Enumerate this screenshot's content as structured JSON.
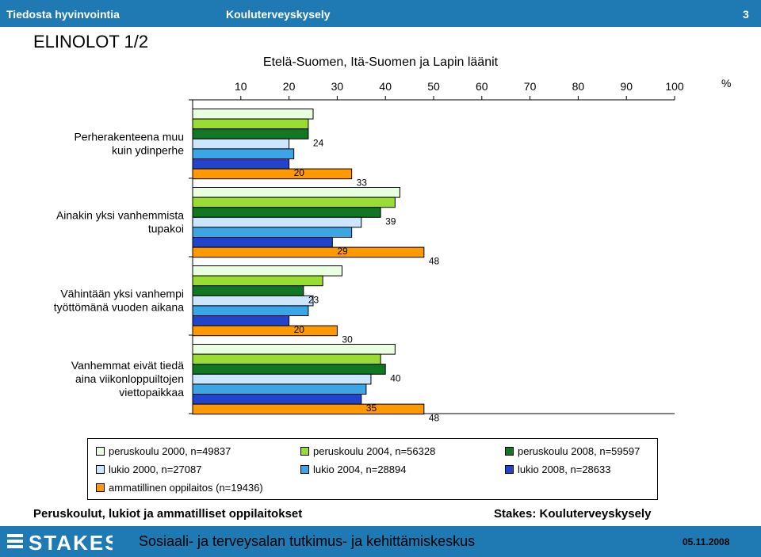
{
  "header": {
    "left": "Tiedosta hyvinvointia",
    "center": "Kouluterveyskysely",
    "page": "3"
  },
  "page_title": "ELINOLOT 1/2",
  "chart_data": {
    "type": "bar",
    "orientation": "horizontal",
    "title": "Etelä-Suomen, Itä-Suomen ja Lapin läänit",
    "unit": "%",
    "xlim": [
      0,
      100
    ],
    "ticks": [
      "10",
      "20",
      "30",
      "40",
      "50",
      "60",
      "70",
      "80",
      "90",
      "100"
    ],
    "grid": false,
    "legend_position": "bottom",
    "categories": [
      [
        "Perherakenteena muu",
        "kuin ydinperhe"
      ],
      [
        "Ainakin yksi vanhemmista",
        "tupakoi"
      ],
      [
        "Vähintään yksi vanhempi",
        "työttömänä vuoden aikana"
      ],
      [
        "Vanhemmat eivät tiedä",
        "aina viikonloppuiltojen",
        "viettopaikkaa"
      ]
    ],
    "series": [
      {
        "name": "peruskoulu 2000, n=49837",
        "color": "#e8ffe0",
        "values": [
          25,
          43,
          31,
          42
        ],
        "labels": [
          "",
          "",
          "",
          ""
        ]
      },
      {
        "name": "peruskoulu 2004, n=56328",
        "color": "#99dd33",
        "values": [
          24,
          42,
          27,
          39
        ],
        "labels": [
          "",
          "",
          "",
          ""
        ]
      },
      {
        "name": "peruskoulu 2008, n=59597",
        "color": "#117722",
        "values": [
          24,
          39,
          23,
          40
        ],
        "labels": [
          "24",
          "39",
          "23",
          "40"
        ]
      },
      {
        "name": "lukio 2000, n=27087",
        "color": "#cce6ff",
        "values": [
          20,
          35,
          25,
          37
        ],
        "labels": [
          "",
          "",
          "",
          ""
        ]
      },
      {
        "name": "lukio 2004, n=28894",
        "color": "#3aa6e6",
        "values": [
          21,
          33,
          24,
          36
        ],
        "labels": [
          "",
          "",
          "",
          ""
        ]
      },
      {
        "name": "lukio 2008, n=28633",
        "color": "#2244cc",
        "values": [
          20,
          29,
          20,
          35
        ],
        "labels": [
          "20",
          "29",
          "20",
          "35"
        ]
      },
      {
        "name": "ammatillinen oppilaitos (n=19436)",
        "color": "#ff9900",
        "values": [
          33,
          48,
          30,
          48
        ],
        "labels": [
          "33",
          "48",
          "30",
          "48"
        ]
      }
    ]
  },
  "footer": {
    "left": "Peruskoulut, lukiot ja ammatilliset oppilaitokset",
    "right": "Stakes: Kouluterveyskysely",
    "org": "Sosiaali- ja terveysalan tutkimus- ja kehittämiskeskus",
    "date": "05.11.2008",
    "logo": "STAKES"
  }
}
